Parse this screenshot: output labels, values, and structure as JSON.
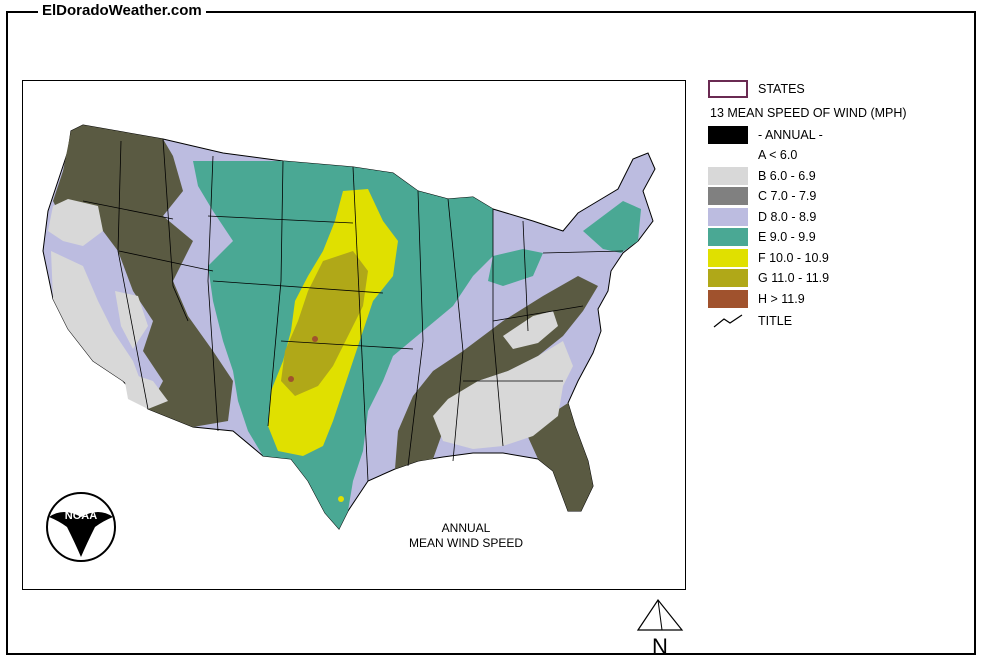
{
  "site_title": "ElDoradoWeather.com",
  "map_caption": {
    "line1": "ANNUAL",
    "line2": "MEAN WIND SPEED"
  },
  "logo_text": "NOAA",
  "north_label": "N",
  "legend": {
    "states_label": "STATES",
    "heading": "13 MEAN SPEED OF WIND (MPH)",
    "annual_label": "- ANNUAL -",
    "title_label": "TITLE",
    "states_border_color": "#6a2a52",
    "classes": [
      {
        "label": "A < 6.0",
        "color": "#ffffff"
      },
      {
        "label": "B 6.0 - 6.9",
        "color": "#d8d8d8"
      },
      {
        "label": "C 7.0 - 7.9",
        "color": "#808080"
      },
      {
        "label": "D 8.0 - 8.9",
        "color": "#bcbce0"
      },
      {
        "label": "E 9.0 - 9.9",
        "color": "#4aa894"
      },
      {
        "label": "F 10.0 - 10.9",
        "color": "#e0e000"
      },
      {
        "label": "G 11.0 - 11.9",
        "color": "#b0a818"
      },
      {
        "label": "H > 11.9",
        "color": "#a0522d"
      }
    ]
  },
  "map_colors": {
    "dark_zone": "#5a5a42",
    "annual_black": "#000000"
  }
}
